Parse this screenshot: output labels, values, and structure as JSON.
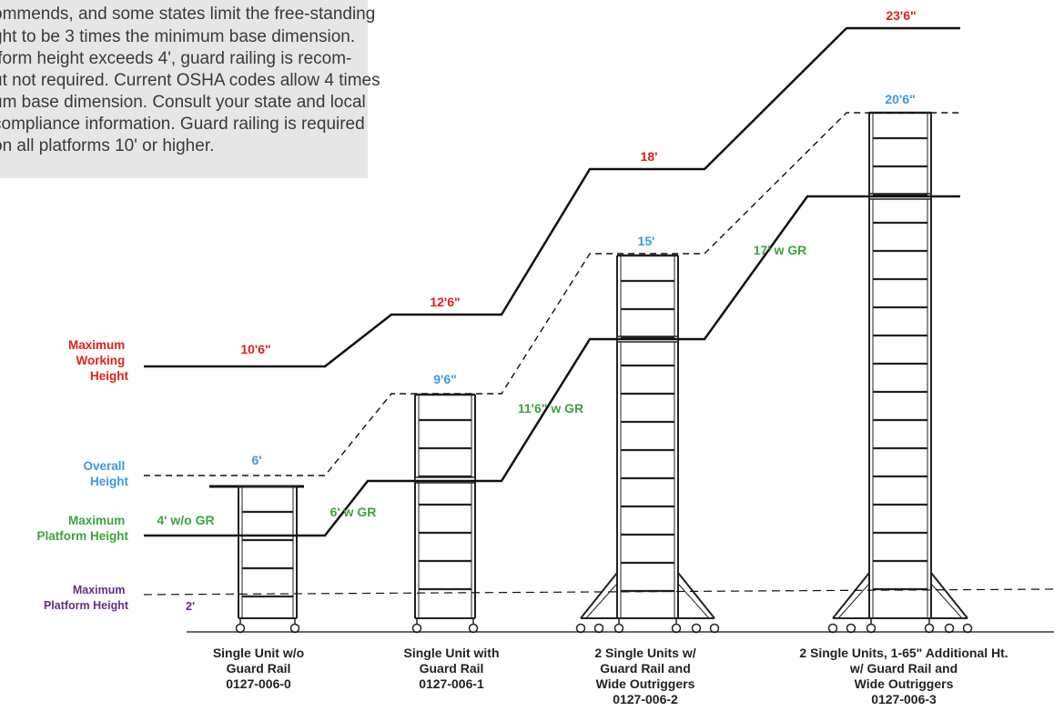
{
  "colors": {
    "red": "#e0201a",
    "blue": "#3d9ad9",
    "green": "#3aa63a",
    "purple": "#6a2b86",
    "line": "#111111",
    "note_bg": "#e6e6e6"
  },
  "note": {
    "lines": [
      "ommends, and some states limit the free-standing",
      "ght to be 3 times the minimum base dimension.",
      "tform height exceeds 4', guard railing is recom-",
      "ut not required.  Current OSHA codes allow 4 times",
      "um base dimension. Consult your state and local",
      "compliance information. Guard railing is required",
      "on all platforms 10' or higher."
    ]
  },
  "legend": {
    "working": [
      "Maximum",
      "Working",
      "Height"
    ],
    "overall": [
      "Overall",
      "Height"
    ],
    "platform": [
      "Maximum",
      "Platform Height"
    ],
    "min_platform": [
      "Maximum",
      "Platform Height"
    ]
  },
  "values": {
    "working": [
      "10'6\"",
      "12'6\"",
      "18'",
      "23'6\""
    ],
    "overall": [
      "6'",
      "9'6\"",
      "15'",
      "20'6\""
    ],
    "platform": [
      "4' w/o GR",
      "6' w GR",
      "11'6\" w GR",
      "17' w GR"
    ],
    "min_platform": "2'"
  },
  "units": [
    {
      "caption": [
        "Single Unit w/o",
        "Guard Rail",
        "0127-006-0"
      ]
    },
    {
      "caption": [
        "Single Unit with",
        "Guard Rail",
        "0127-006-1"
      ]
    },
    {
      "caption": [
        "2 Single Units w/",
        "Guard Rail and",
        "Wide Outriggers",
        "0127-006-2"
      ]
    },
    {
      "caption": [
        "2 Single Units, 1-65\" Additional Ht.",
        "w/ Guard Rail and",
        "Wide Outriggers",
        "0127-006-3"
      ]
    }
  ]
}
